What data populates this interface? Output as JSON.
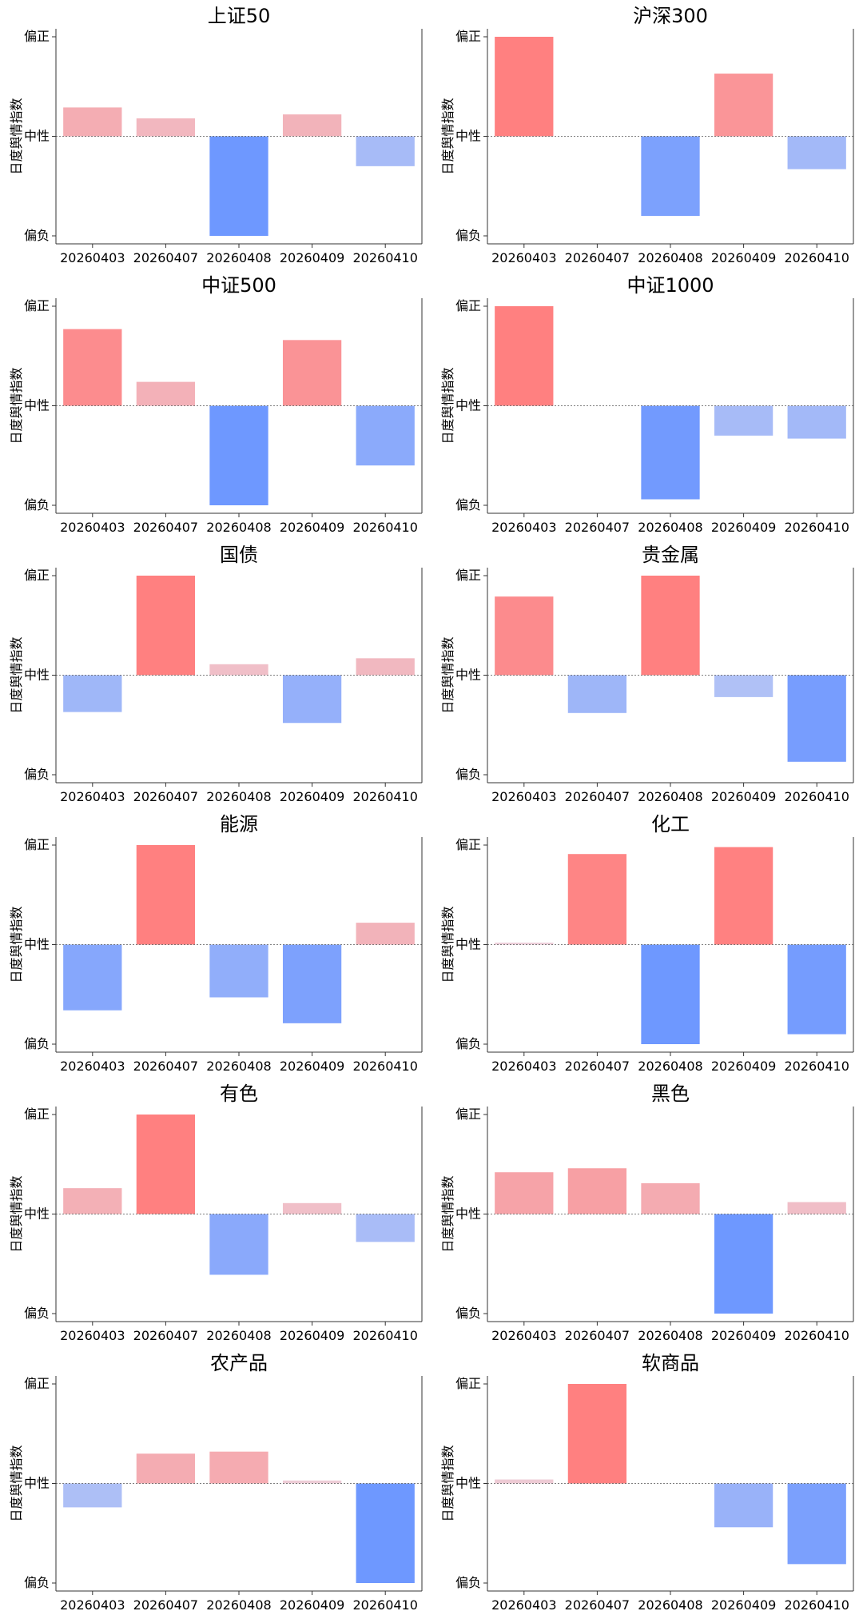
{
  "chart_data": [
    {
      "type": "bar",
      "title": "上证50",
      "ylabel": "日度舆情指数",
      "categories": [
        "20260403",
        "20260407",
        "20260408",
        "20260409",
        "20260410"
      ],
      "values": [
        0.29,
        0.18,
        -1.0,
        0.22,
        -0.3
      ],
      "ylim": [
        -1,
        1
      ],
      "yticks": [
        "偏负",
        "中性",
        "偏正"
      ]
    },
    {
      "type": "bar",
      "title": "沪深300",
      "ylabel": "日度舆情指数",
      "categories": [
        "20260403",
        "20260407",
        "20260408",
        "20260409",
        "20260410"
      ],
      "values": [
        1.0,
        0.0,
        -0.8,
        0.63,
        -0.33
      ],
      "ylim": [
        -1,
        1
      ],
      "yticks": [
        "偏负",
        "中性",
        "偏正"
      ]
    },
    {
      "type": "bar",
      "title": "中证500",
      "ylabel": "日度舆情指数",
      "categories": [
        "20260403",
        "20260407",
        "20260408",
        "20260409",
        "20260410"
      ],
      "values": [
        0.77,
        0.24,
        -1.0,
        0.66,
        -0.6
      ],
      "ylim": [
        -1,
        1
      ],
      "yticks": [
        "偏负",
        "中性",
        "偏正"
      ]
    },
    {
      "type": "bar",
      "title": "中证1000",
      "ylabel": "日度舆情指数",
      "categories": [
        "20260403",
        "20260407",
        "20260408",
        "20260409",
        "20260410"
      ],
      "values": [
        1.0,
        0.0,
        -0.94,
        -0.3,
        -0.33
      ],
      "ylim": [
        -1,
        1
      ],
      "yticks": [
        "偏负",
        "中性",
        "偏正"
      ]
    },
    {
      "type": "bar",
      "title": "国债",
      "ylabel": "日度舆情指数",
      "categories": [
        "20260403",
        "20260407",
        "20260408",
        "20260409",
        "20260410"
      ],
      "values": [
        -0.37,
        1.0,
        0.11,
        -0.48,
        0.17
      ],
      "ylim": [
        -1,
        1
      ],
      "yticks": [
        "偏负",
        "中性",
        "偏正"
      ]
    },
    {
      "type": "bar",
      "title": "贵金属",
      "ylabel": "日度舆情指数",
      "categories": [
        "20260403",
        "20260407",
        "20260408",
        "20260409",
        "20260410"
      ],
      "values": [
        0.79,
        -0.38,
        1.0,
        -0.22,
        -0.87
      ],
      "ylim": [
        -1,
        1
      ],
      "yticks": [
        "偏负",
        "中性",
        "偏正"
      ]
    },
    {
      "type": "bar",
      "title": "能源",
      "ylabel": "日度舆情指数",
      "categories": [
        "20260403",
        "20260407",
        "20260408",
        "20260409",
        "20260410"
      ],
      "values": [
        -0.66,
        1.0,
        -0.53,
        -0.79,
        0.22
      ],
      "ylim": [
        -1,
        1
      ],
      "yticks": [
        "偏负",
        "中性",
        "偏正"
      ]
    },
    {
      "type": "bar",
      "title": "化工",
      "ylabel": "日度舆情指数",
      "categories": [
        "20260403",
        "20260407",
        "20260408",
        "20260409",
        "20260410"
      ],
      "values": [
        0.02,
        0.91,
        -1.0,
        0.98,
        -0.9
      ],
      "ylim": [
        -1,
        1
      ],
      "yticks": [
        "偏负",
        "中性",
        "偏正"
      ]
    },
    {
      "type": "bar",
      "title": "有色",
      "ylabel": "日度舆情指数",
      "categories": [
        "20260403",
        "20260407",
        "20260408",
        "20260409",
        "20260410"
      ],
      "values": [
        0.26,
        1.0,
        -0.61,
        0.11,
        -0.28
      ],
      "ylim": [
        -1,
        1
      ],
      "yticks": [
        "偏负",
        "中性",
        "偏正"
      ]
    },
    {
      "type": "bar",
      "title": "黑色",
      "ylabel": "日度舆情指数",
      "categories": [
        "20260403",
        "20260407",
        "20260408",
        "20260409",
        "20260410"
      ],
      "values": [
        0.42,
        0.46,
        0.31,
        -1.0,
        0.12
      ],
      "ylim": [
        -1,
        1
      ],
      "yticks": [
        "偏负",
        "中性",
        "偏正"
      ]
    },
    {
      "type": "bar",
      "title": "农产品",
      "ylabel": "日度舆情指数",
      "categories": [
        "20260403",
        "20260407",
        "20260408",
        "20260409",
        "20260410"
      ],
      "values": [
        -0.24,
        0.3,
        0.32,
        0.03,
        -1.0
      ],
      "ylim": [
        -1,
        1
      ],
      "yticks": [
        "偏负",
        "中性",
        "偏正"
      ]
    },
    {
      "type": "bar",
      "title": "软商品",
      "ylabel": "日度舆情指数",
      "categories": [
        "20260403",
        "20260407",
        "20260408",
        "20260409",
        "20260410"
      ],
      "values": [
        0.04,
        1.0,
        0.0,
        -0.44,
        -0.81
      ],
      "ylim": [
        -1,
        1
      ],
      "yticks": [
        "偏负",
        "中性",
        "偏正"
      ]
    }
  ],
  "colors": {
    "positive": "#ff8080",
    "negative": "#6e98ff",
    "neutral_pos": "#ead6e2",
    "neutral_neg": "#dcdcf0",
    "axis": "#333333",
    "zero_line": "#555555"
  }
}
